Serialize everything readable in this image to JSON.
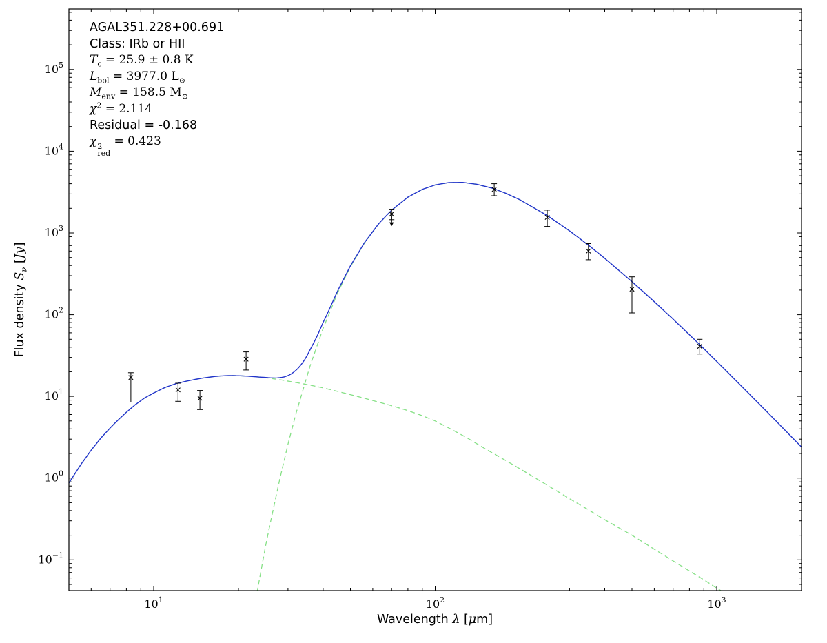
{
  "figure": {
    "background": "#ffffff",
    "frame_color": "#000000",
    "model_color": "#2233cc",
    "component_color": "#86e086",
    "data_color": "#000000"
  },
  "annotation": {
    "source": "AGAL351.228+00.691",
    "class_line": "Class: IRb or HII",
    "tc": {
      "var": "T",
      "sub": "c",
      "rest": " = 25.9 ± 0.8 K"
    },
    "lbol": {
      "var": "L",
      "sub": "bol",
      "rest": " = 3977.0 L",
      "sun": "⊙"
    },
    "menv": {
      "var": "M",
      "sub": "env",
      "rest": " = 158.5 M",
      "sun": "⊙"
    },
    "chi2": {
      "var": "χ",
      "sup": "2",
      "rest": " = 2.114"
    },
    "residual": "Residual = -0.168",
    "chi2red": {
      "var": "χ",
      "sup": "2",
      "sub": "red",
      "rest": " = 0.423"
    }
  },
  "axes": {
    "xlabel": {
      "pre": "Wavelength ",
      "math": "λ",
      "post1": " [",
      "mu": "μ",
      "post2": "m]"
    },
    "ylabel": {
      "pre": "Flux density ",
      "math": "S",
      "sub": "ν",
      "post1": " [",
      "unit": "Jy",
      "post2": "]"
    }
  },
  "chart_data": {
    "type": "line",
    "title": "",
    "xlabel": "Wavelength λ [μm]",
    "ylabel": "Flux density S_ν [Jy]",
    "x_scale": "log",
    "y_scale": "log",
    "xlim": [
      5,
      2000
    ],
    "ylim": [
      0.042,
      550000
    ],
    "x_major_ticks": [
      10,
      100,
      1000
    ],
    "y_major_ticks": [
      0.1,
      1,
      10,
      100,
      1000,
      10000,
      100000
    ],
    "grid": false,
    "legend": "none",
    "series": [
      {
        "name": "total-model",
        "style": "solid",
        "color": "#2233cc",
        "width": 1.4,
        "sum_of": [
          "hot-component",
          "cold-component"
        ]
      },
      {
        "name": "hot-component",
        "style": "dashed",
        "color": "#86e086",
        "width": 1.3,
        "points": [
          [
            5,
            0.87
          ],
          [
            5.5,
            1.45
          ],
          [
            6,
            2.2
          ],
          [
            6.5,
            3.1
          ],
          [
            7,
            4.1
          ],
          [
            7.5,
            5.2
          ],
          [
            8,
            6.4
          ],
          [
            8.6,
            7.9
          ],
          [
            9.3,
            9.6
          ],
          [
            10,
            11.0
          ],
          [
            11,
            12.9
          ],
          [
            12,
            14.3
          ],
          [
            13,
            15.3
          ],
          [
            14,
            16.1
          ],
          [
            15,
            16.8
          ],
          [
            16,
            17.3
          ],
          [
            17,
            17.7
          ],
          [
            18,
            17.9
          ],
          [
            19,
            18.0
          ],
          [
            20,
            17.9
          ],
          [
            22,
            17.6
          ],
          [
            25,
            16.9
          ],
          [
            28,
            16.0
          ],
          [
            32,
            14.8
          ],
          [
            36,
            13.7
          ],
          [
            40,
            12.7
          ],
          [
            45,
            11.5
          ],
          [
            50,
            10.5
          ],
          [
            56,
            9.5
          ],
          [
            63,
            8.5
          ],
          [
            70,
            7.7
          ],
          [
            80,
            6.7
          ],
          [
            90,
            5.8
          ],
          [
            100,
            5.0
          ],
          [
            115,
            3.9
          ],
          [
            130,
            3.1
          ],
          [
            150,
            2.3
          ],
          [
            170,
            1.8
          ],
          [
            200,
            1.3
          ],
          [
            250,
            0.82
          ],
          [
            300,
            0.56
          ],
          [
            350,
            0.41
          ],
          [
            400,
            0.31
          ],
          [
            500,
            0.2
          ],
          [
            600,
            0.135
          ],
          [
            700,
            0.097
          ],
          [
            800,
            0.073
          ],
          [
            900,
            0.057
          ],
          [
            1000,
            0.045
          ],
          [
            1100,
            0.037
          ]
        ]
      },
      {
        "name": "cold-component",
        "style": "dashed",
        "color": "#86e086",
        "width": 1.3,
        "points": [
          [
            23,
            0.032
          ],
          [
            24,
            0.07
          ],
          [
            25,
            0.15
          ],
          [
            26,
            0.29
          ],
          [
            28,
            0.95
          ],
          [
            30,
            2.6
          ],
          [
            32,
            6.1
          ],
          [
            36,
            24
          ],
          [
            40,
            68
          ],
          [
            45,
            184
          ],
          [
            50,
            386
          ],
          [
            56,
            747
          ],
          [
            63,
            1291
          ],
          [
            70,
            1891
          ],
          [
            80,
            2736
          ],
          [
            90,
            3406
          ],
          [
            100,
            3862
          ],
          [
            112,
            4127
          ],
          [
            125,
            4147
          ],
          [
            140,
            3944
          ],
          [
            160,
            3516
          ],
          [
            180,
            3008
          ],
          [
            200,
            2538
          ],
          [
            250,
            1631
          ],
          [
            300,
            1060
          ],
          [
            350,
            709
          ],
          [
            400,
            489
          ],
          [
            500,
            253
          ],
          [
            600,
            144
          ],
          [
            700,
            88
          ],
          [
            870,
            43
          ],
          [
            1000,
            26.7
          ],
          [
            1200,
            14.3
          ],
          [
            1500,
            6.6
          ],
          [
            2000,
            2.4
          ]
        ]
      }
    ],
    "data_points": {
      "marker": "x",
      "color": "#000000",
      "points": [
        {
          "lambda_um": 8.3,
          "flux_jy": 17,
          "err_hi": 19.5,
          "err_lo": 8.5
        },
        {
          "lambda_um": 12.2,
          "flux_jy": 12,
          "err_hi": 14.5,
          "err_lo": 8.7
        },
        {
          "lambda_um": 14.6,
          "flux_jy": 9.5,
          "err_hi": 11.8,
          "err_lo": 6.9
        },
        {
          "lambda_um": 21.3,
          "flux_jy": 28.5,
          "err_hi": 35,
          "err_lo": 21
        },
        {
          "lambda_um": 70,
          "flux_jy": 1700,
          "err_hi": 1950,
          "err_lo": 1450,
          "upper_limit": true
        },
        {
          "lambda_um": 162,
          "flux_jy": 3400,
          "err_hi": 4000,
          "err_lo": 2850
        },
        {
          "lambda_um": 250,
          "flux_jy": 1550,
          "err_hi": 1900,
          "err_lo": 1200
        },
        {
          "lambda_um": 350,
          "flux_jy": 600,
          "err_hi": 740,
          "err_lo": 470
        },
        {
          "lambda_um": 500,
          "flux_jy": 205,
          "err_hi": 290,
          "err_lo": 105
        },
        {
          "lambda_um": 870,
          "flux_jy": 41,
          "err_hi": 50,
          "err_lo": 33
        }
      ]
    }
  }
}
